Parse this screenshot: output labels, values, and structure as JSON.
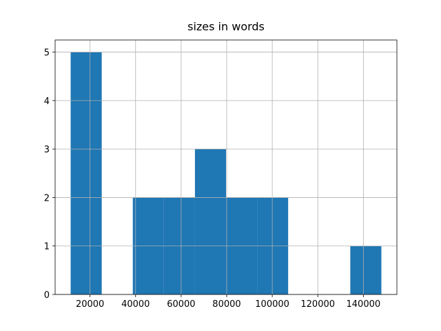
{
  "chart_data": {
    "type": "histogram",
    "title": "sizes in words",
    "bins": [
      11500,
      25140,
      38780,
      52420,
      66060,
      79700,
      93340,
      106980,
      120620,
      134260,
      147900
    ],
    "values": [
      5,
      0,
      2,
      2,
      3,
      2,
      2,
      0,
      0,
      1
    ],
    "color": "#1f77b4",
    "xlim": [
      4680,
      154720
    ],
    "xticks": [
      20000,
      40000,
      60000,
      80000,
      100000,
      120000,
      140000
    ],
    "ylim": [
      0,
      5.25
    ],
    "yticks": [
      0,
      1,
      2,
      3,
      4,
      5
    ],
    "grid": true
  }
}
